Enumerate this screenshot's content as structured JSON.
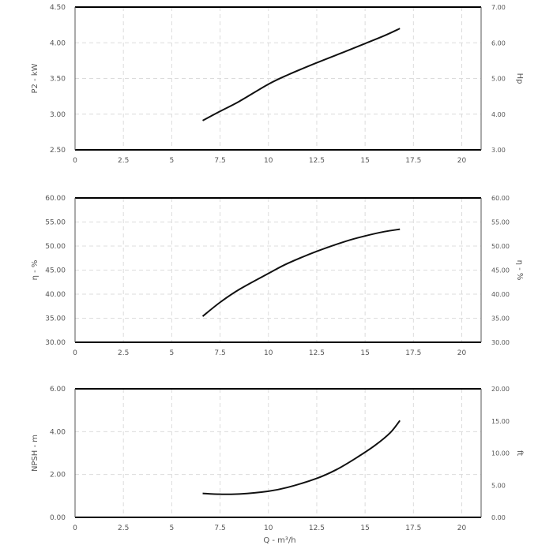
{
  "chart_data": [
    {
      "type": "line",
      "ylabel": "P2 - kW",
      "y2label": "Hp",
      "xlim": [
        0,
        21
      ],
      "ylim": [
        2.5,
        4.5
      ],
      "y2lim": [
        3.0,
        7.0
      ],
      "xticks": [
        0,
        2.5,
        5,
        7.5,
        10,
        12.5,
        15,
        17.5,
        20
      ],
      "xtick_labels": [
        "0",
        "2.5",
        "5",
        "7.5",
        "10",
        "12.5",
        "15",
        "17.5",
        "20"
      ],
      "yticks": [
        2.5,
        3.0,
        3.5,
        4.0,
        4.5
      ],
      "ytick_labels": [
        "2.50",
        "3.00",
        "3.50",
        "4.00",
        "4.50"
      ],
      "y2ticks": [
        3,
        4,
        5,
        6,
        7
      ],
      "y2tick_labels": [
        "3.00",
        "4.00",
        "5.00",
        "6.00",
        "7.00"
      ],
      "grid": true,
      "series": [
        {
          "x": [
            6.6,
            7.5,
            8.5,
            10,
            11,
            12.5,
            14,
            15,
            16,
            16.8
          ],
          "y": [
            2.91,
            3.04,
            3.18,
            3.42,
            3.55,
            3.72,
            3.88,
            3.99,
            4.1,
            4.2
          ]
        }
      ]
    },
    {
      "type": "line",
      "ylabel": "η - %",
      "y2label": "η - %",
      "xlim": [
        0,
        21
      ],
      "ylim": [
        30,
        60
      ],
      "y2lim": [
        30,
        60
      ],
      "xticks": [
        0,
        2.5,
        5,
        7.5,
        10,
        12.5,
        15,
        17.5,
        20
      ],
      "xtick_labels": [
        "0",
        "2.5",
        "5",
        "7.5",
        "10",
        "12.5",
        "15",
        "17.5",
        "20"
      ],
      "yticks": [
        30,
        35,
        40,
        45,
        50,
        55,
        60
      ],
      "ytick_labels": [
        "30.00",
        "35.00",
        "40.00",
        "45.00",
        "50.00",
        "55.00",
        "60.00"
      ],
      "y2ticks": [
        30,
        35,
        40,
        45,
        50,
        55,
        60
      ],
      "y2tick_labels": [
        "30.00",
        "35.00",
        "40.00",
        "45.00",
        "50.00",
        "55.00",
        "60.00"
      ],
      "grid": true,
      "series": [
        {
          "x": [
            6.6,
            7.5,
            8.5,
            10,
            11,
            12.5,
            14,
            15,
            16,
            16.8
          ],
          "y": [
            35.4,
            38.3,
            41.0,
            44.3,
            46.4,
            48.9,
            51.0,
            52.1,
            53.0,
            53.5
          ]
        }
      ]
    },
    {
      "type": "line",
      "ylabel": "NPSH - m",
      "y2label": "ft",
      "xlabel": "Q - m³/h",
      "xlim": [
        0,
        21
      ],
      "ylim": [
        0,
        6
      ],
      "y2lim": [
        0,
        20
      ],
      "xticks": [
        0,
        2.5,
        5,
        7.5,
        10,
        12.5,
        15,
        17.5,
        20
      ],
      "xtick_labels": [
        "0",
        "2.5",
        "5",
        "7.5",
        "10",
        "12.5",
        "15",
        "17.5",
        "20"
      ],
      "yticks": [
        0,
        2,
        4,
        6
      ],
      "ytick_labels": [
        "0.00",
        "2.00",
        "4.00",
        "6.00"
      ],
      "y2ticks": [
        0,
        5,
        10,
        15,
        20
      ],
      "y2tick_labels": [
        "0.00",
        "5.00",
        "10.00",
        "15.00",
        "20.00"
      ],
      "grid": true,
      "series": [
        {
          "x": [
            6.6,
            7.5,
            8.5,
            10,
            11,
            12.5,
            13.5,
            14.5,
            15.5,
            16.3,
            16.8
          ],
          "y": [
            1.12,
            1.08,
            1.09,
            1.22,
            1.4,
            1.82,
            2.22,
            2.75,
            3.35,
            3.95,
            4.52
          ]
        }
      ]
    }
  ]
}
